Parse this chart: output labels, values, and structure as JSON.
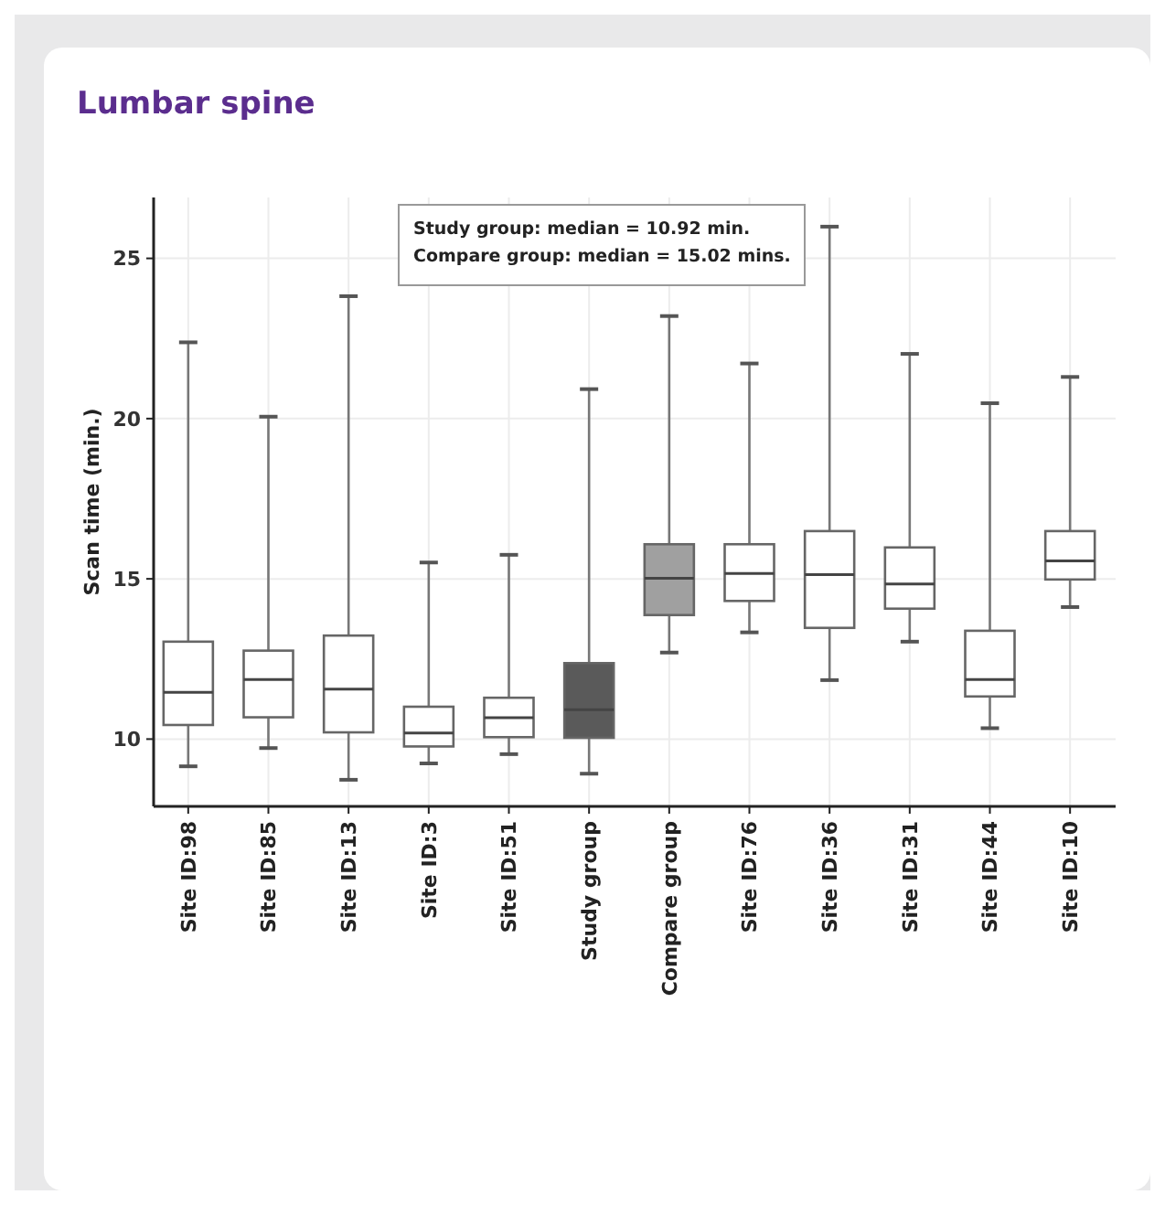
{
  "chart_data": {
    "type": "box",
    "title": "Lumbar spine",
    "ylabel": "Scan time (min.)",
    "categories": [
      "Site ID:98",
      "Site ID:85",
      "Site ID:13",
      "Site ID:3",
      "Site ID:51",
      "Study group",
      "Compare group",
      "Site ID:76",
      "Site ID:36",
      "Site ID:31",
      "Site ID:44",
      "Site ID:10"
    ],
    "colors": [
      "#ffffff",
      "#ffffff",
      "#ffffff",
      "#ffffff",
      "#ffffff",
      "#5a5a5a",
      "#a0a0a0",
      "#ffffff",
      "#ffffff",
      "#ffffff",
      "#ffffff",
      "#ffffff"
    ],
    "boxes": [
      {
        "low": 9.15,
        "q1": 10.44,
        "median": 11.46,
        "q3": 13.04,
        "high": 22.38
      },
      {
        "low": 9.72,
        "q1": 10.68,
        "median": 11.86,
        "q3": 12.76,
        "high": 20.06
      },
      {
        "low": 8.73,
        "q1": 10.21,
        "median": 11.56,
        "q3": 13.23,
        "high": 23.82
      },
      {
        "low": 9.24,
        "q1": 9.77,
        "median": 10.19,
        "q3": 11.01,
        "high": 15.51
      },
      {
        "low": 9.53,
        "q1": 10.06,
        "median": 10.67,
        "q3": 11.29,
        "high": 15.75
      },
      {
        "low": 8.92,
        "q1": 10.04,
        "median": 10.92,
        "q3": 12.37,
        "high": 20.92
      },
      {
        "low": 12.7,
        "q1": 13.87,
        "median": 15.02,
        "q3": 16.08,
        "high": 23.2
      },
      {
        "low": 13.33,
        "q1": 14.31,
        "median": 15.17,
        "q3": 16.08,
        "high": 21.72
      },
      {
        "low": 11.84,
        "q1": 13.47,
        "median": 15.13,
        "q3": 16.49,
        "high": 25.99
      },
      {
        "low": 13.04,
        "q1": 14.07,
        "median": 14.84,
        "q3": 15.98,
        "high": 22.02
      },
      {
        "low": 10.34,
        "q1": 11.33,
        "median": 11.86,
        "q3": 13.38,
        "high": 20.48
      },
      {
        "low": 14.12,
        "q1": 14.98,
        "median": 15.56,
        "q3": 16.49,
        "high": 21.3
      }
    ],
    "ylim": [
      7.9,
      26.9
    ],
    "yticks": [
      10,
      15,
      20,
      25
    ],
    "grid": true,
    "annotations": [
      "Study group: median = 10.92 min.",
      "Compare group: median = 15.02 mins."
    ]
  }
}
